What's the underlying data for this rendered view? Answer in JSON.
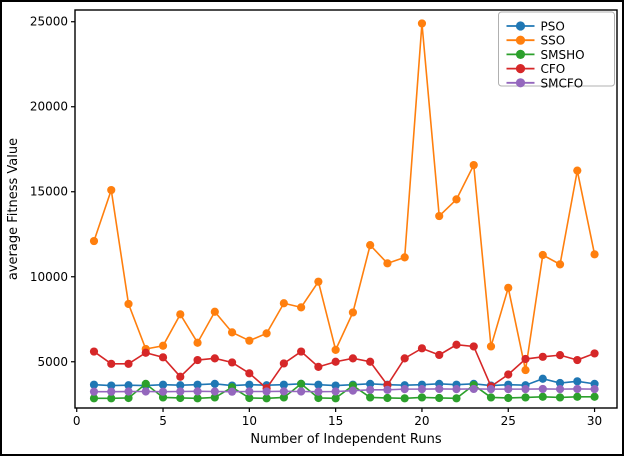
{
  "figure": {
    "background": "#ffffff",
    "frame_color": "#000000",
    "spine_color": "#000000",
    "legend_border_color": "#b0b0b0"
  },
  "chart_data": {
    "type": "line",
    "title": "",
    "xlabel": "Number of Independent Runs",
    "ylabel": "average Fitness Value",
    "x": [
      1,
      2,
      3,
      4,
      5,
      6,
      7,
      8,
      9,
      10,
      11,
      12,
      13,
      14,
      15,
      16,
      17,
      18,
      19,
      20,
      21,
      22,
      23,
      24,
      25,
      26,
      27,
      28,
      29,
      30
    ],
    "xticks": [
      0,
      5,
      10,
      15,
      20,
      25,
      30
    ],
    "yticks": [
      5000,
      10000,
      15000,
      20000,
      25000
    ],
    "xlim": [
      -0.1,
      31.3
    ],
    "ylim": [
      2280,
      25690
    ],
    "grid": false,
    "legend_position": "upper right",
    "marker": "circle",
    "series": [
      {
        "name": "PSO",
        "color": "#1f77b4",
        "values": [
          3650,
          3600,
          3620,
          3600,
          3650,
          3620,
          3650,
          3700,
          3600,
          3650,
          3620,
          3650,
          3700,
          3650,
          3600,
          3650,
          3700,
          3650,
          3620,
          3650,
          3700,
          3650,
          3700,
          3600,
          3650,
          3620,
          4000,
          3750,
          3850,
          3700
        ]
      },
      {
        "name": "SSO",
        "color": "#ff7f0e",
        "values": [
          12100,
          15100,
          8400,
          5750,
          5940,
          7790,
          6120,
          7940,
          6730,
          6240,
          6670,
          8440,
          8200,
          9710,
          5700,
          7900,
          11860,
          10790,
          11140,
          24900,
          13570,
          14550,
          16570,
          5900,
          9350,
          4510,
          11280,
          10730,
          16240,
          11320
        ]
      },
      {
        "name": "SMSHO",
        "color": "#2ca02c",
        "values": [
          2850,
          2850,
          2870,
          3700,
          2900,
          2870,
          2850,
          2900,
          3500,
          2870,
          2850,
          2900,
          3700,
          2870,
          2850,
          3600,
          2900,
          2870,
          2850,
          2900,
          2870,
          2850,
          3630,
          2900,
          2870,
          2900,
          2940,
          2900,
          2940,
          2940
        ]
      },
      {
        "name": "CFO",
        "color": "#d62728",
        "values": [
          5600,
          4880,
          4880,
          5530,
          5260,
          4120,
          5100,
          5200,
          4960,
          4320,
          3440,
          4900,
          5600,
          4700,
          5000,
          5200,
          5000,
          3630,
          5200,
          5790,
          5400,
          6000,
          5900,
          3550,
          4250,
          5160,
          5290,
          5390,
          5100,
          5490
        ]
      },
      {
        "name": "SMCFO",
        "color": "#9467bd",
        "values": [
          3240,
          3240,
          3250,
          3250,
          3240,
          3250,
          3260,
          3250,
          3240,
          3250,
          3250,
          3260,
          3250,
          3240,
          3250,
          3300,
          3350,
          3350,
          3390,
          3390,
          3400,
          3390,
          3400,
          3390,
          3390,
          3390,
          3400,
          3390,
          3400,
          3390
        ]
      }
    ]
  }
}
